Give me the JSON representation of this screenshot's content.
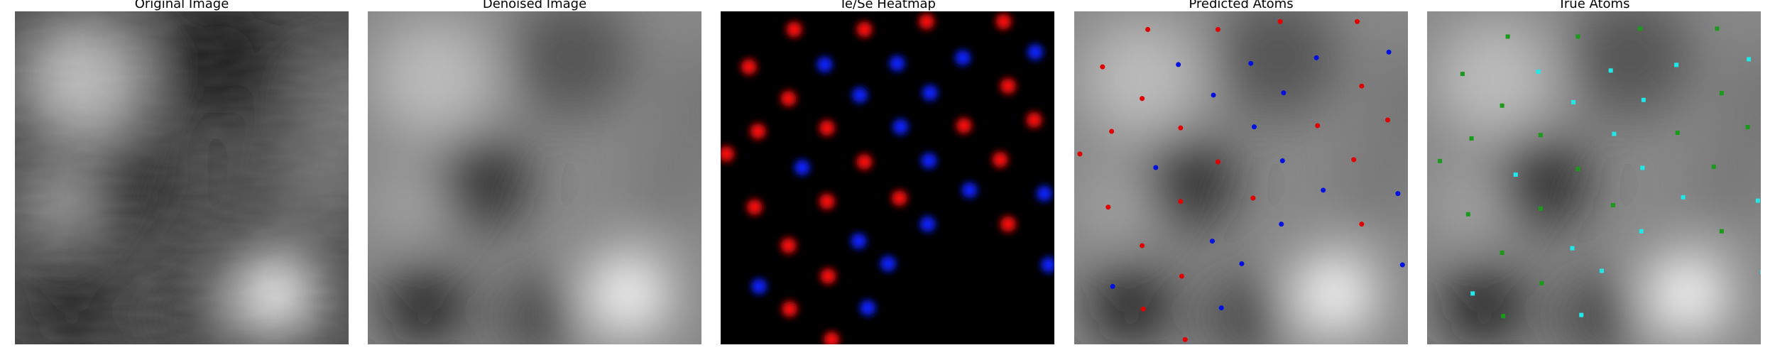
{
  "panels": [
    {
      "title": "Original Image"
    },
    {
      "title": "Denoised Image"
    },
    {
      "title": "Te/Se Heatmap"
    },
    {
      "title": "Predicted Atoms"
    },
    {
      "title": "True Atoms"
    }
  ]
}
